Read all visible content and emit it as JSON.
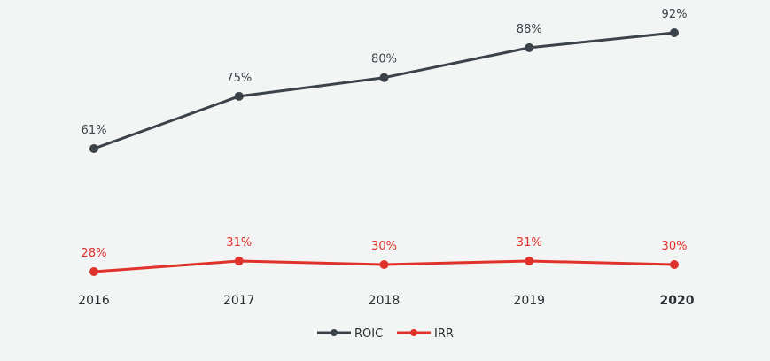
{
  "chart_data": {
    "type": "line",
    "x": [
      "2016",
      "2017",
      "2018",
      "2019",
      "2020"
    ],
    "bold_tick": "2020",
    "series": [
      {
        "name": "ROIC",
        "color": "#3b4249",
        "values": [
          61,
          75,
          80,
          88,
          92
        ],
        "labels": [
          "61%",
          "75%",
          "80%",
          "88%",
          "92%"
        ]
      },
      {
        "name": "IRR",
        "color": "#e0312b",
        "values": [
          28,
          31,
          30,
          31,
          30
        ],
        "labels": [
          "28%",
          "31%",
          "30%",
          "31%",
          "30%"
        ]
      }
    ],
    "legend_position": "bottom-center",
    "grid": false,
    "y_axis_visible": false
  }
}
